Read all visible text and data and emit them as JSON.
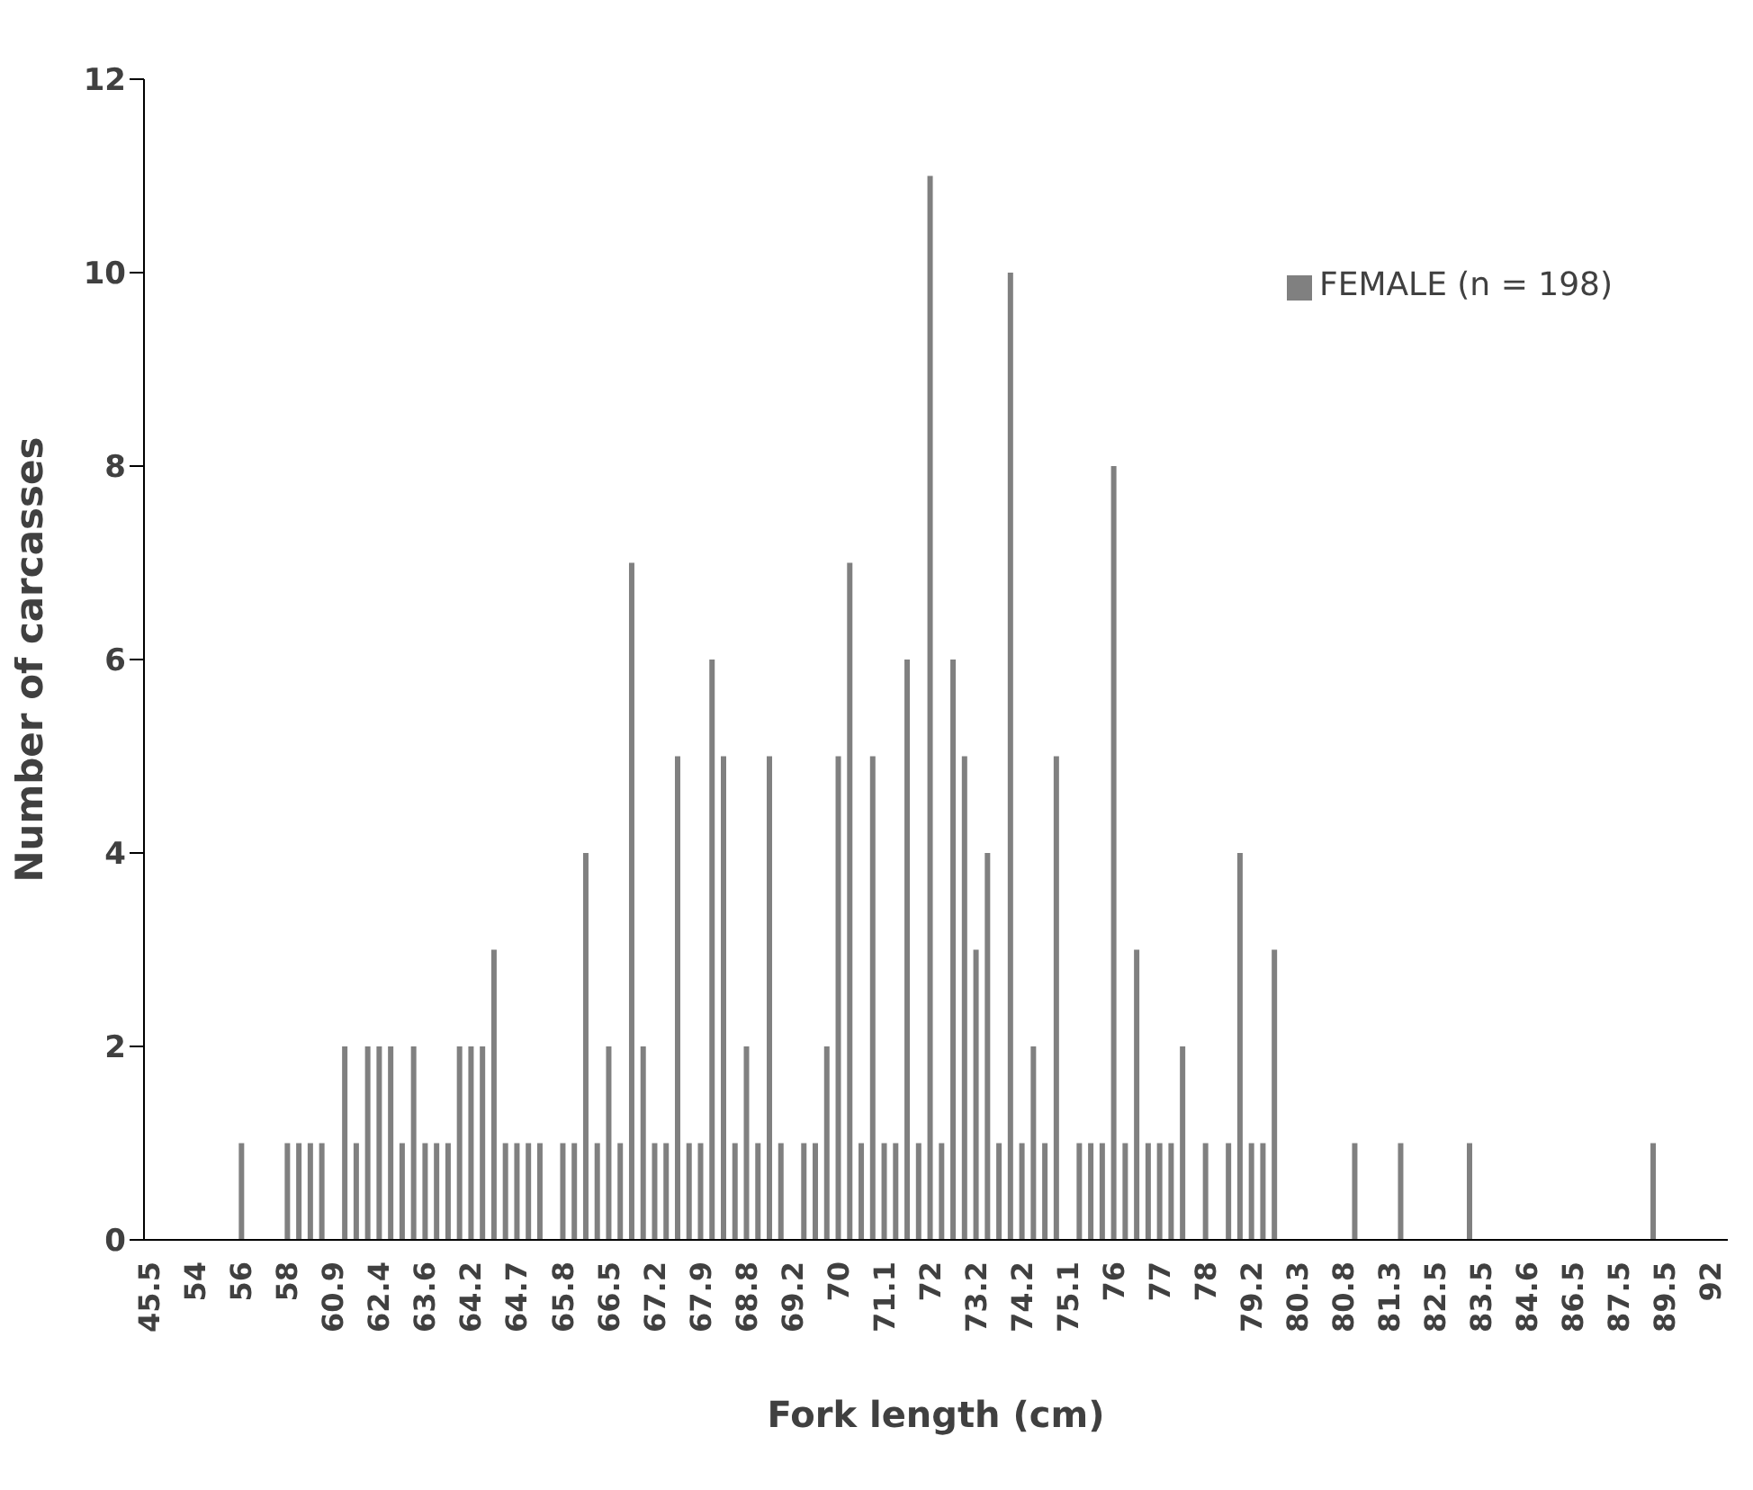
{
  "chart_data": {
    "type": "bar",
    "xlabel": "Fork length (cm)",
    "ylabel": "Number of carcasses",
    "categories": [
      "45.5",
      null,
      null,
      null,
      "54",
      null,
      null,
      null,
      "56",
      null,
      null,
      null,
      "58",
      null,
      null,
      null,
      "60.9",
      null,
      null,
      null,
      "62.4",
      null,
      null,
      null,
      "63.6",
      null,
      null,
      null,
      "64.2",
      null,
      null,
      null,
      "64.7",
      null,
      null,
      null,
      "65.8",
      null,
      null,
      null,
      "66.5",
      null,
      null,
      null,
      "67.2",
      null,
      null,
      null,
      "67.9",
      null,
      null,
      null,
      "68.8",
      null,
      null,
      null,
      "69.2",
      null,
      null,
      null,
      "70",
      null,
      null,
      null,
      "71.1",
      null,
      null,
      null,
      "72",
      null,
      null,
      null,
      "73.2",
      null,
      null,
      null,
      "74.2",
      null,
      null,
      null,
      "75.1",
      null,
      null,
      null,
      "76",
      null,
      null,
      null,
      "77",
      null,
      null,
      null,
      "78",
      null,
      null,
      null,
      "79.2",
      null,
      null,
      null,
      "80.3",
      null,
      null,
      null,
      "80.8",
      null,
      null,
      null,
      "81.3",
      null,
      null,
      null,
      "82.5",
      null,
      null,
      null,
      "83.5",
      null,
      null,
      null,
      "84.6",
      null,
      null,
      null,
      "86.5",
      null,
      null,
      null,
      "87.5",
      null,
      null,
      null,
      "89.5",
      null,
      null,
      null,
      "92",
      null
    ],
    "series": [
      {
        "name": "FEMALE (n = 198)",
        "color": "#808080",
        "values": [
          0,
          0,
          0,
          0,
          0,
          0,
          0,
          0,
          1,
          0,
          0,
          0,
          1,
          1,
          1,
          1,
          0,
          2,
          1,
          2,
          2,
          2,
          1,
          2,
          1,
          1,
          1,
          2,
          2,
          2,
          3,
          1,
          1,
          1,
          1,
          0,
          1,
          1,
          4,
          1,
          2,
          1,
          7,
          2,
          1,
          1,
          5,
          1,
          1,
          6,
          5,
          1,
          2,
          1,
          5,
          1,
          0,
          1,
          1,
          2,
          5,
          7,
          1,
          5,
          1,
          1,
          6,
          1,
          11,
          1,
          6,
          5,
          3,
          4,
          1,
          10,
          1,
          2,
          1,
          5,
          0,
          1,
          1,
          1,
          8,
          1,
          3,
          1,
          1,
          1,
          2,
          0,
          1,
          0,
          1,
          4,
          1,
          1,
          3,
          0,
          0,
          0,
          0,
          0,
          0,
          1,
          0,
          0,
          0,
          1,
          0,
          0,
          0,
          0,
          0,
          1,
          0,
          0,
          0,
          0,
          0,
          0,
          0,
          0,
          0,
          0,
          0,
          0,
          0,
          0,
          0,
          1,
          0,
          0,
          0,
          0,
          0,
          0
        ]
      }
    ],
    "ylim": [
      0,
      12
    ],
    "yticks": [
      0,
      2,
      4,
      6,
      8,
      10,
      12
    ],
    "grid": false,
    "legend": "top right"
  }
}
